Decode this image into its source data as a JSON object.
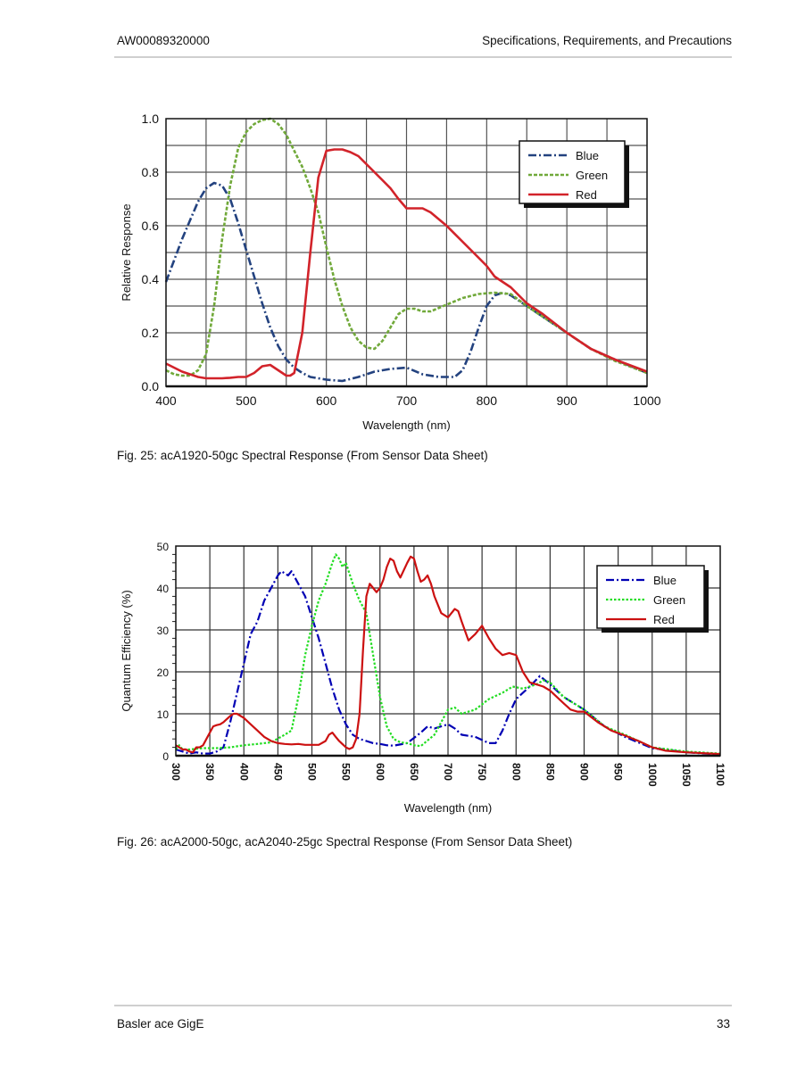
{
  "header": {
    "doc_id": "AW00089320000",
    "section": "Specifications, Requirements, and Precautions"
  },
  "footer": {
    "product": "Basler ace GigE",
    "page_number": "33"
  },
  "captions": {
    "fig25": "Fig. 25: acA1920-50gc Spectral Response (From Sensor Data Sheet)",
    "fig26": "Fig. 26: acA2000-50gc, acA2040-25gc Spectral Response (From Sensor Data Sheet)"
  },
  "chart_data": [
    {
      "type": "line",
      "title": "",
      "xlabel": "Wavelength (nm)",
      "ylabel": "Relative Response",
      "xlim": [
        400,
        1000
      ],
      "ylim": [
        0.0,
        1.0
      ],
      "xticks": [
        400,
        500,
        600,
        700,
        800,
        900,
        1000
      ],
      "xtick_labels": [
        "400",
        "500",
        "600",
        "700",
        "800",
        "900",
        "1000"
      ],
      "yticks": [
        0.0,
        0.2,
        0.4,
        0.6,
        0.8,
        1.0
      ],
      "ytick_labels": [
        "0.0",
        "0.2",
        "0.4",
        "0.6",
        "0.8",
        "1.0"
      ],
      "grid": true,
      "legend_position": "top-right",
      "series": [
        {
          "name": "Blue",
          "color": "#23427f",
          "style": "dash-dot",
          "x": [
            400,
            410,
            420,
            430,
            440,
            450,
            460,
            470,
            480,
            490,
            500,
            510,
            520,
            530,
            540,
            550,
            560,
            570,
            580,
            600,
            620,
            640,
            660,
            680,
            700,
            720,
            740,
            760,
            770,
            780,
            790,
            800,
            810,
            820,
            830,
            850,
            870,
            900,
            930,
            960,
            1000
          ],
          "y": [
            0.39,
            0.47,
            0.55,
            0.62,
            0.69,
            0.74,
            0.76,
            0.75,
            0.7,
            0.61,
            0.51,
            0.41,
            0.31,
            0.22,
            0.15,
            0.1,
            0.07,
            0.05,
            0.035,
            0.025,
            0.02,
            0.035,
            0.055,
            0.065,
            0.07,
            0.045,
            0.035,
            0.035,
            0.06,
            0.13,
            0.22,
            0.3,
            0.34,
            0.35,
            0.34,
            0.3,
            0.26,
            0.2,
            0.14,
            0.1,
            0.05
          ]
        },
        {
          "name": "Green",
          "color": "#71a93a",
          "style": "dashed",
          "x": [
            400,
            410,
            420,
            430,
            440,
            450,
            460,
            470,
            480,
            490,
            500,
            510,
            520,
            530,
            540,
            550,
            560,
            570,
            580,
            590,
            600,
            610,
            620,
            630,
            640,
            650,
            660,
            670,
            680,
            690,
            700,
            710,
            720,
            730,
            750,
            770,
            790,
            810,
            830,
            850,
            870,
            900,
            930,
            960,
            1000
          ],
          "y": [
            0.06,
            0.045,
            0.04,
            0.04,
            0.06,
            0.12,
            0.3,
            0.55,
            0.75,
            0.89,
            0.95,
            0.98,
            0.995,
            1.0,
            0.98,
            0.94,
            0.88,
            0.82,
            0.74,
            0.65,
            0.52,
            0.4,
            0.3,
            0.22,
            0.17,
            0.145,
            0.14,
            0.17,
            0.22,
            0.27,
            0.29,
            0.29,
            0.28,
            0.28,
            0.305,
            0.33,
            0.345,
            0.35,
            0.345,
            0.3,
            0.26,
            0.2,
            0.14,
            0.095,
            0.05
          ]
        },
        {
          "name": "Red",
          "color": "#d2232a",
          "style": "solid",
          "x": [
            400,
            410,
            420,
            430,
            440,
            450,
            460,
            470,
            480,
            490,
            500,
            510,
            520,
            530,
            540,
            550,
            555,
            560,
            570,
            580,
            590,
            600,
            610,
            620,
            630,
            640,
            650,
            660,
            670,
            680,
            690,
            700,
            710,
            720,
            730,
            750,
            770,
            790,
            800,
            810,
            830,
            850,
            870,
            900,
            930,
            960,
            1000
          ],
          "y": [
            0.085,
            0.07,
            0.055,
            0.045,
            0.035,
            0.03,
            0.03,
            0.03,
            0.032,
            0.035,
            0.035,
            0.05,
            0.075,
            0.08,
            0.06,
            0.04,
            0.04,
            0.05,
            0.2,
            0.5,
            0.78,
            0.88,
            0.885,
            0.885,
            0.875,
            0.86,
            0.83,
            0.8,
            0.77,
            0.74,
            0.7,
            0.665,
            0.665,
            0.665,
            0.65,
            0.6,
            0.54,
            0.48,
            0.45,
            0.41,
            0.37,
            0.31,
            0.27,
            0.2,
            0.14,
            0.1,
            0.055
          ]
        }
      ]
    },
    {
      "type": "line",
      "title": "",
      "xlabel": "Wavelength (nm)",
      "ylabel": "Quantum Efficiency (%)",
      "xlim": [
        300,
        1100
      ],
      "ylim": [
        0,
        50
      ],
      "xticks": [
        300,
        350,
        400,
        450,
        500,
        550,
        600,
        650,
        700,
        750,
        800,
        850,
        900,
        950,
        1000,
        1050,
        1100
      ],
      "xtick_labels": [
        "300",
        "350",
        "400",
        "450",
        "500",
        "550",
        "600",
        "650",
        "700",
        "750",
        "800",
        "850",
        "900",
        "950",
        "1000",
        "1050",
        "1100"
      ],
      "yticks": [
        0,
        10,
        20,
        30,
        40,
        50
      ],
      "ytick_labels": [
        "0",
        "10",
        "20",
        "30",
        "40",
        "50"
      ],
      "grid": true,
      "legend_position": "top-right",
      "series": [
        {
          "name": "Blue",
          "color": "#0000b4",
          "style": "dash-dot",
          "x": [
            300,
            310,
            320,
            330,
            340,
            350,
            360,
            370,
            380,
            390,
            400,
            410,
            420,
            430,
            440,
            450,
            455,
            460,
            465,
            470,
            480,
            490,
            500,
            510,
            520,
            530,
            540,
            550,
            560,
            570,
            580,
            590,
            600,
            610,
            620,
            640,
            660,
            670,
            680,
            690,
            700,
            710,
            720,
            740,
            760,
            770,
            780,
            790,
            800,
            820,
            835,
            850,
            870,
            900,
            930,
            960,
            1000,
            1050,
            1100
          ],
          "y": [
            1.5,
            1.0,
            0.5,
            0.8,
            0.5,
            0.5,
            1.0,
            2.0,
            8.0,
            15.0,
            22.0,
            29.0,
            32.0,
            37.0,
            40.0,
            43.0,
            44.0,
            43.5,
            43.0,
            44.0,
            41.0,
            38.0,
            33.0,
            28.0,
            22.0,
            16.0,
            11.0,
            7.5,
            5.0,
            4.0,
            3.5,
            3.0,
            2.8,
            2.5,
            2.4,
            3.0,
            5.5,
            7.0,
            6.5,
            7.0,
            7.5,
            6.5,
            5.0,
            4.5,
            3.0,
            3.0,
            6.0,
            10.0,
            13.5,
            16.5,
            19.0,
            17.0,
            14.0,
            11.0,
            7.0,
            4.5,
            1.8,
            0.8,
            0.3
          ]
        },
        {
          "name": "Green",
          "color": "#22dd22",
          "style": "dotted",
          "x": [
            300,
            305,
            310,
            320,
            340,
            360,
            380,
            400,
            420,
            440,
            460,
            470,
            480,
            490,
            500,
            510,
            520,
            530,
            535,
            540,
            545,
            550,
            560,
            570,
            580,
            590,
            600,
            610,
            620,
            630,
            640,
            650,
            660,
            680,
            690,
            700,
            710,
            720,
            740,
            760,
            780,
            795,
            810,
            830,
            840,
            850,
            870,
            900,
            930,
            960,
            1000,
            1050,
            1100
          ],
          "y": [
            1.5,
            2.5,
            1.5,
            1.5,
            1.8,
            1.8,
            2.0,
            2.5,
            2.8,
            3.2,
            5.0,
            6.0,
            14.0,
            24.0,
            31.0,
            37.0,
            41.0,
            46.0,
            48.0,
            47.0,
            45.0,
            46.0,
            41.0,
            37.0,
            34.0,
            24.0,
            14.0,
            7.0,
            4.0,
            3.2,
            3.0,
            2.5,
            2.3,
            5.0,
            8.0,
            11.0,
            11.5,
            10.0,
            11.0,
            13.5,
            15.0,
            16.5,
            16.0,
            17.0,
            18.0,
            17.5,
            14.0,
            11.0,
            7.0,
            5.0,
            2.0,
            1.0,
            0.5
          ]
        },
        {
          "name": "Red",
          "color": "#cc1111",
          "style": "solid",
          "x": [
            300,
            305,
            310,
            315,
            320,
            325,
            330,
            335,
            340,
            345,
            350,
            355,
            360,
            365,
            370,
            380,
            385,
            390,
            400,
            410,
            420,
            430,
            440,
            450,
            460,
            470,
            480,
            490,
            500,
            510,
            520,
            525,
            530,
            535,
            540,
            550,
            555,
            560,
            565,
            570,
            575,
            580,
            585,
            590,
            595,
            600,
            605,
            610,
            615,
            620,
            625,
            630,
            640,
            645,
            650,
            655,
            660,
            665,
            670,
            675,
            680,
            690,
            700,
            710,
            715,
            720,
            730,
            740,
            750,
            760,
            770,
            780,
            790,
            800,
            810,
            820,
            830,
            840,
            850,
            860,
            870,
            880,
            890,
            900,
            920,
            940,
            960,
            980,
            1000,
            1020,
            1050,
            1100
          ],
          "y": [
            2.5,
            2.0,
            1.5,
            1.5,
            1.0,
            0.8,
            2.0,
            2.0,
            2.5,
            4.0,
            5.5,
            7.0,
            7.3,
            7.5,
            8.0,
            9.5,
            10.0,
            10.0,
            9.0,
            7.5,
            6.0,
            4.5,
            3.5,
            3.0,
            2.8,
            2.7,
            2.8,
            2.6,
            2.6,
            2.6,
            3.5,
            5.0,
            5.5,
            4.5,
            3.5,
            2.0,
            1.6,
            2.0,
            4.0,
            10.0,
            25.0,
            38.0,
            41.0,
            40.0,
            39.0,
            40.0,
            42.0,
            45.0,
            47.0,
            46.5,
            44.0,
            42.5,
            46.0,
            47.5,
            47.0,
            44.0,
            41.5,
            42.0,
            43.0,
            41.0,
            38.0,
            34.0,
            33.0,
            35.0,
            34.5,
            32.0,
            27.5,
            29.0,
            31.0,
            28.0,
            25.5,
            24.0,
            24.5,
            24.0,
            20.0,
            17.5,
            17.0,
            16.5,
            15.5,
            14.0,
            12.5,
            11.0,
            10.5,
            10.5,
            8.0,
            6.0,
            4.8,
            3.5,
            2.0,
            1.2,
            0.8,
            0.4
          ]
        }
      ]
    }
  ]
}
